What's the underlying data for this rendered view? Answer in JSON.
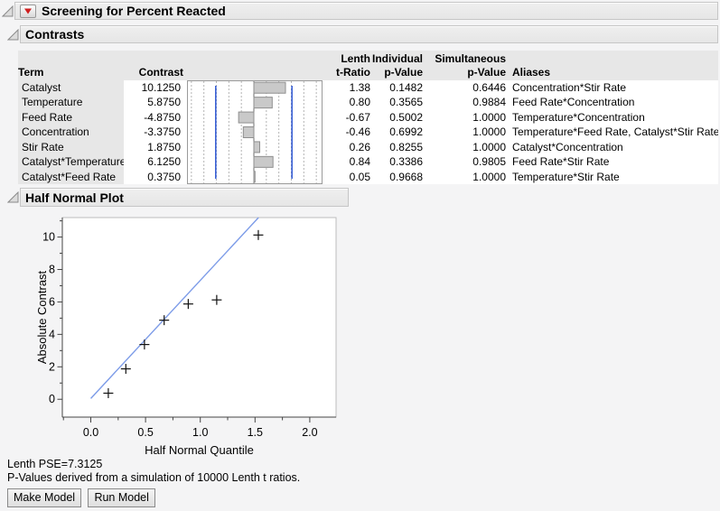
{
  "window": {
    "screening_title": "Screening for Percent Reacted",
    "contrasts_title": "Contrasts",
    "half_normal_title": "Half Normal Plot"
  },
  "contrasts_table": {
    "header": {
      "term": "Term",
      "contrast": "Contrast",
      "lenth_line1": "Lenth",
      "lenth_line2": "t-Ratio",
      "individual_line1": "Individual",
      "individual_line2": "p-Value",
      "simultaneous_line1": "Simultaneous",
      "simultaneous_line2": "p-Value",
      "aliases": "Aliases"
    },
    "rows": [
      {
        "term": "Catalyst",
        "contrast": "10.1250",
        "t_ratio": "1.38",
        "p_individual": "0.1482",
        "p_simultaneous": "0.6446",
        "aliases": "Concentration*Stir Rate"
      },
      {
        "term": "Temperature",
        "contrast": "5.8750",
        "t_ratio": "0.80",
        "p_individual": "0.3565",
        "p_simultaneous": "0.9884",
        "aliases": "Feed Rate*Concentration"
      },
      {
        "term": "Feed Rate",
        "contrast": "-4.8750",
        "t_ratio": "-0.67",
        "p_individual": "0.5002",
        "p_simultaneous": "1.0000",
        "aliases": "Temperature*Concentration"
      },
      {
        "term": "Concentration",
        "contrast": "-3.3750",
        "t_ratio": "-0.46",
        "p_individual": "0.6992",
        "p_simultaneous": "1.0000",
        "aliases": "Temperature*Feed Rate, Catalyst*Stir Rate"
      },
      {
        "term": "Stir Rate",
        "contrast": "1.8750",
        "t_ratio": "0.26",
        "p_individual": "0.8255",
        "p_simultaneous": "1.0000",
        "aliases": "Catalyst*Concentration"
      },
      {
        "term": "Catalyst*Temperature",
        "contrast": "6.1250",
        "t_ratio": "0.84",
        "p_individual": "0.3386",
        "p_simultaneous": "0.9805",
        "aliases": "Feed Rate*Stir Rate"
      },
      {
        "term": "Catalyst*Feed Rate",
        "contrast": "0.3750",
        "t_ratio": "0.05",
        "p_individual": "0.9668",
        "p_simultaneous": "1.0000",
        "aliases": "Temperature*Stir Rate"
      }
    ]
  },
  "chart_data": [
    {
      "type": "bar",
      "orientation": "horizontal",
      "panel": "Contrasts inline bar column",
      "categories": [
        "Catalyst",
        "Temperature",
        "Feed Rate",
        "Concentration",
        "Stir Rate",
        "Catalyst*Temperature",
        "Catalyst*Feed Rate"
      ],
      "values": [
        10.125,
        5.875,
        -4.875,
        -3.375,
        1.875,
        6.125,
        0.375
      ],
      "xlim": [
        -21.4,
        22.0
      ],
      "gridline_step": 4,
      "reference_lines": [
        -12.2,
        12.2
      ],
      "bar_fill": "#c9c9c9",
      "bar_stroke": "#8f8f8f",
      "reference_color": "#2b55d4"
    },
    {
      "type": "scatter",
      "panel": "Half Normal Plot",
      "xlabel": "Half Normal Quantile",
      "ylabel": "Absolute Contrast",
      "x": [
        0.16,
        0.32,
        0.49,
        0.67,
        0.89,
        1.15,
        1.53
      ],
      "y": [
        0.375,
        1.875,
        3.375,
        4.875,
        5.875,
        6.125,
        10.125
      ],
      "xlim": [
        -0.26,
        2.24
      ],
      "ylim": [
        -1.1,
        11.2
      ],
      "xticks": [
        0.0,
        0.5,
        1.0,
        1.5,
        2.0
      ],
      "yticks": [
        0,
        2,
        4,
        6,
        8,
        10
      ],
      "xtick_minor_step": 0.25,
      "ytick_minor_step": 1,
      "marker": "plus",
      "line": {
        "slope": 7.3125,
        "intercept": 0,
        "color": "#7d9ce8"
      }
    }
  ],
  "footer": {
    "lenth_pse": "Lenth PSE=7.3125",
    "pvalue_note": "P-Values derived from a simulation of 10000 Lenth t ratios.",
    "make_model_label": "Make Model",
    "run_model_label": "Run Model"
  },
  "colors": {
    "accent_blue": "#2b55d4",
    "fit_line_blue": "#7d9ce8",
    "red_triangle": "#cf1f1f",
    "header_gray": "#e7e7e7",
    "titlebar_gray": "#eaeaea"
  },
  "icons": {
    "disclosure_open": "open-disclosure-triangle",
    "red_triangle_menu": "red-triangle-menu"
  }
}
